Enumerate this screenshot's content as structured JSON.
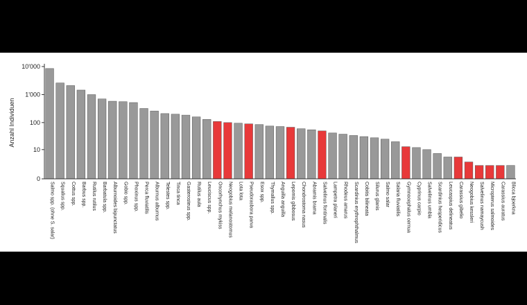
{
  "chart_data": {
    "type": "bar",
    "title": "",
    "xlabel": "",
    "ylabel": "Anzahl Individuen",
    "yscale": "log1p",
    "ylim": [
      0,
      10000
    ],
    "yticks": [
      {
        "value": 0,
        "label": "0"
      },
      {
        "value": 10,
        "label": "10"
      },
      {
        "value": 100,
        "label": "100"
      },
      {
        "value": 1000,
        "label": "1'000"
      },
      {
        "value": 10000,
        "label": "10'000"
      }
    ],
    "colors": {
      "native": "#999999",
      "non_native": "#e8393a",
      "edge": "#555555"
    },
    "categories": [
      "Salmo spp. (ohne S. salar)",
      "Squalius spp.",
      "Cottus spp.",
      "Barbus spp.",
      "Rutilus rutilus",
      "Barbatula spp.",
      "Alburnoides bipunctatus",
      "Gobio spp.",
      "Phoxinus spp.",
      "Perca fluviatilis",
      "Alburnus alburnus",
      "Telestes spp.",
      "Tinca tinca",
      "Gasterosteus spp.",
      "Rutilus aula",
      "Leuciscus spp.",
      "Oncorhynchus mykiss",
      "Neogobius melanostomus",
      "Lota lota",
      "Pseudorasbora parva",
      "Esox spp.",
      "Thymallus spp.",
      "Anguilla anguilla",
      "Lepomis gibbosus",
      "Chondrostoma nasus",
      "Abramis brama",
      "Salvelinus fontinalis",
      "Lampetra planeri",
      "Rhodeus amarus",
      "Scardinius erythrophthalmus",
      "Cobitis bilineata",
      "Silurus glanis",
      "Salmo salar",
      "Salaria fluviatilis",
      "Gymnocephalus cernua",
      "Cyprinus carpio",
      "Salvelinus umbla",
      "Scardinius hesperidicus",
      "Leucaspius delineatus",
      "Carassius gibelio",
      "Neogobius kessleri",
      "Salvelinus namaycush",
      "Micropterus salmoides",
      "Carassius auratus",
      "Blicca bjoerkna"
    ],
    "values": [
      8500,
      2600,
      2100,
      1450,
      1000,
      700,
      580,
      560,
      520,
      320,
      260,
      210,
      200,
      185,
      160,
      130,
      110,
      100,
      95,
      90,
      85,
      75,
      72,
      68,
      60,
      55,
      50,
      42,
      38,
      34,
      31,
      28,
      25,
      20,
      13,
      12,
      10,
      7,
      5,
      5,
      3,
      2,
      2,
      2,
      2
    ],
    "non_native": [
      false,
      false,
      false,
      false,
      false,
      false,
      false,
      false,
      false,
      false,
      false,
      false,
      false,
      false,
      false,
      false,
      true,
      true,
      false,
      true,
      false,
      false,
      false,
      true,
      false,
      false,
      true,
      false,
      false,
      false,
      false,
      false,
      false,
      false,
      true,
      false,
      false,
      false,
      false,
      true,
      true,
      true,
      true,
      true,
      false
    ]
  }
}
